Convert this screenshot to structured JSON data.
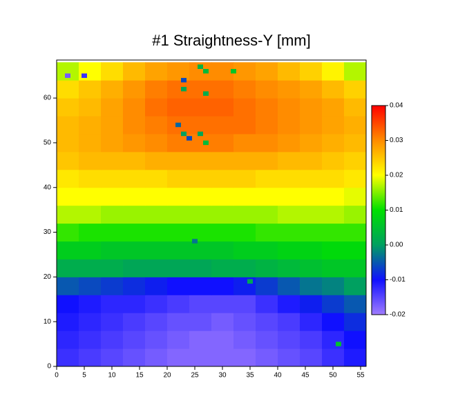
{
  "chart_data": {
    "type": "heatmap",
    "title": "#1 Straightness-Y [mm]",
    "x_edges": [
      0,
      4,
      8,
      12,
      16,
      20,
      24,
      28,
      32,
      36,
      40,
      44,
      48,
      52,
      56
    ],
    "y_edges": [
      0,
      4,
      8,
      12,
      16,
      20,
      24,
      28,
      32,
      36,
      40,
      44,
      48,
      52,
      56,
      60,
      64,
      68
    ],
    "z": [
      [
        -0.013,
        -0.014,
        -0.015,
        -0.016,
        -0.017,
        -0.018,
        -0.018,
        -0.018,
        -0.018,
        -0.017,
        -0.016,
        -0.015,
        -0.013,
        -0.011
      ],
      [
        -0.012,
        -0.013,
        -0.014,
        -0.015,
        -0.016,
        -0.017,
        -0.018,
        -0.018,
        -0.017,
        -0.016,
        -0.015,
        -0.014,
        -0.012,
        -0.01
      ],
      [
        -0.011,
        -0.012,
        -0.013,
        -0.014,
        -0.015,
        -0.016,
        -0.016,
        -0.017,
        -0.016,
        -0.015,
        -0.014,
        -0.012,
        -0.01,
        -0.008
      ],
      [
        -0.01,
        -0.011,
        -0.012,
        -0.012,
        -0.013,
        -0.014,
        -0.015,
        -0.015,
        -0.015,
        -0.013,
        -0.011,
        -0.009,
        -0.007,
        -0.005
      ],
      [
        -0.005,
        -0.006,
        -0.007,
        -0.008,
        -0.009,
        -0.01,
        -0.01,
        -0.01,
        -0.009,
        -0.007,
        -0.005,
        -0.003,
        -0.002,
        0.0
      ],
      [
        0.002,
        0.002,
        0.002,
        0.001,
        0.001,
        0.001,
        0.001,
        0.002,
        0.002,
        0.003,
        0.004,
        0.005,
        0.006,
        0.006
      ],
      [
        0.007,
        0.007,
        0.006,
        0.006,
        0.006,
        0.006,
        0.006,
        0.006,
        0.007,
        0.007,
        0.008,
        0.008,
        0.009,
        0.009
      ],
      [
        0.012,
        0.011,
        0.011,
        0.011,
        0.011,
        0.011,
        0.011,
        0.011,
        0.011,
        0.012,
        0.012,
        0.012,
        0.012,
        0.012
      ],
      [
        0.017,
        0.017,
        0.016,
        0.016,
        0.016,
        0.016,
        0.016,
        0.016,
        0.016,
        0.016,
        0.017,
        0.017,
        0.017,
        0.016
      ],
      [
        0.02,
        0.02,
        0.02,
        0.02,
        0.02,
        0.02,
        0.02,
        0.02,
        0.02,
        0.02,
        0.02,
        0.02,
        0.02,
        0.019
      ],
      [
        0.022,
        0.023,
        0.023,
        0.023,
        0.023,
        0.024,
        0.024,
        0.024,
        0.024,
        0.023,
        0.023,
        0.023,
        0.023,
        0.022
      ],
      [
        0.025,
        0.026,
        0.026,
        0.026,
        0.027,
        0.027,
        0.027,
        0.027,
        0.027,
        0.027,
        0.026,
        0.026,
        0.025,
        0.024
      ],
      [
        0.026,
        0.027,
        0.028,
        0.029,
        0.03,
        0.031,
        0.031,
        0.031,
        0.03,
        0.03,
        0.029,
        0.028,
        0.027,
        0.026
      ],
      [
        0.026,
        0.027,
        0.028,
        0.03,
        0.031,
        0.032,
        0.032,
        0.032,
        0.032,
        0.031,
        0.03,
        0.029,
        0.028,
        0.027
      ],
      [
        0.025,
        0.026,
        0.028,
        0.03,
        0.032,
        0.033,
        0.033,
        0.033,
        0.032,
        0.031,
        0.03,
        0.029,
        0.028,
        0.026
      ],
      [
        0.023,
        0.025,
        0.027,
        0.029,
        0.031,
        0.032,
        0.032,
        0.032,
        0.031,
        0.03,
        0.029,
        0.028,
        0.026,
        0.024
      ],
      [
        0.017,
        0.02,
        0.023,
        0.026,
        0.028,
        0.029,
        0.03,
        0.03,
        0.029,
        0.028,
        0.026,
        0.024,
        0.021,
        0.017
      ]
    ],
    "points": {
      "x": [
        2,
        5,
        26,
        27,
        32,
        23,
        23,
        27,
        22,
        23,
        24,
        26,
        27,
        25,
        35,
        51
      ],
      "y": [
        65,
        65,
        67,
        66,
        66,
        64,
        62,
        61,
        54,
        52,
        51,
        52,
        50,
        28,
        19,
        5
      ],
      "values": [
        -0.017,
        -0.013,
        0.003,
        0.004,
        0.006,
        -0.006,
        0.001,
        0.002,
        -0.004,
        0.0,
        -0.006,
        0.001,
        0.004,
        -0.003,
        0.001,
        0.005
      ]
    },
    "xlim": [
      0,
      56
    ],
    "ylim": [
      0,
      68.5
    ],
    "xticks": [
      0,
      5,
      10,
      15,
      20,
      25,
      30,
      35,
      40,
      45,
      50,
      55
    ],
    "yticks": [
      0,
      10,
      20,
      30,
      40,
      50,
      60
    ],
    "zlim": [
      -0.02,
      0.04
    ],
    "zticks": [
      -0.02,
      -0.01,
      {
        "value": 0,
        "label": "0.00"
      },
      0.01,
      0.02,
      0.03,
      0.04
    ],
    "colors": [
      "#a07cff",
      "#1010ff",
      "#00a060",
      "#00e000",
      "#ffff00",
      "#ff8c00",
      "#ff0000"
    ]
  }
}
